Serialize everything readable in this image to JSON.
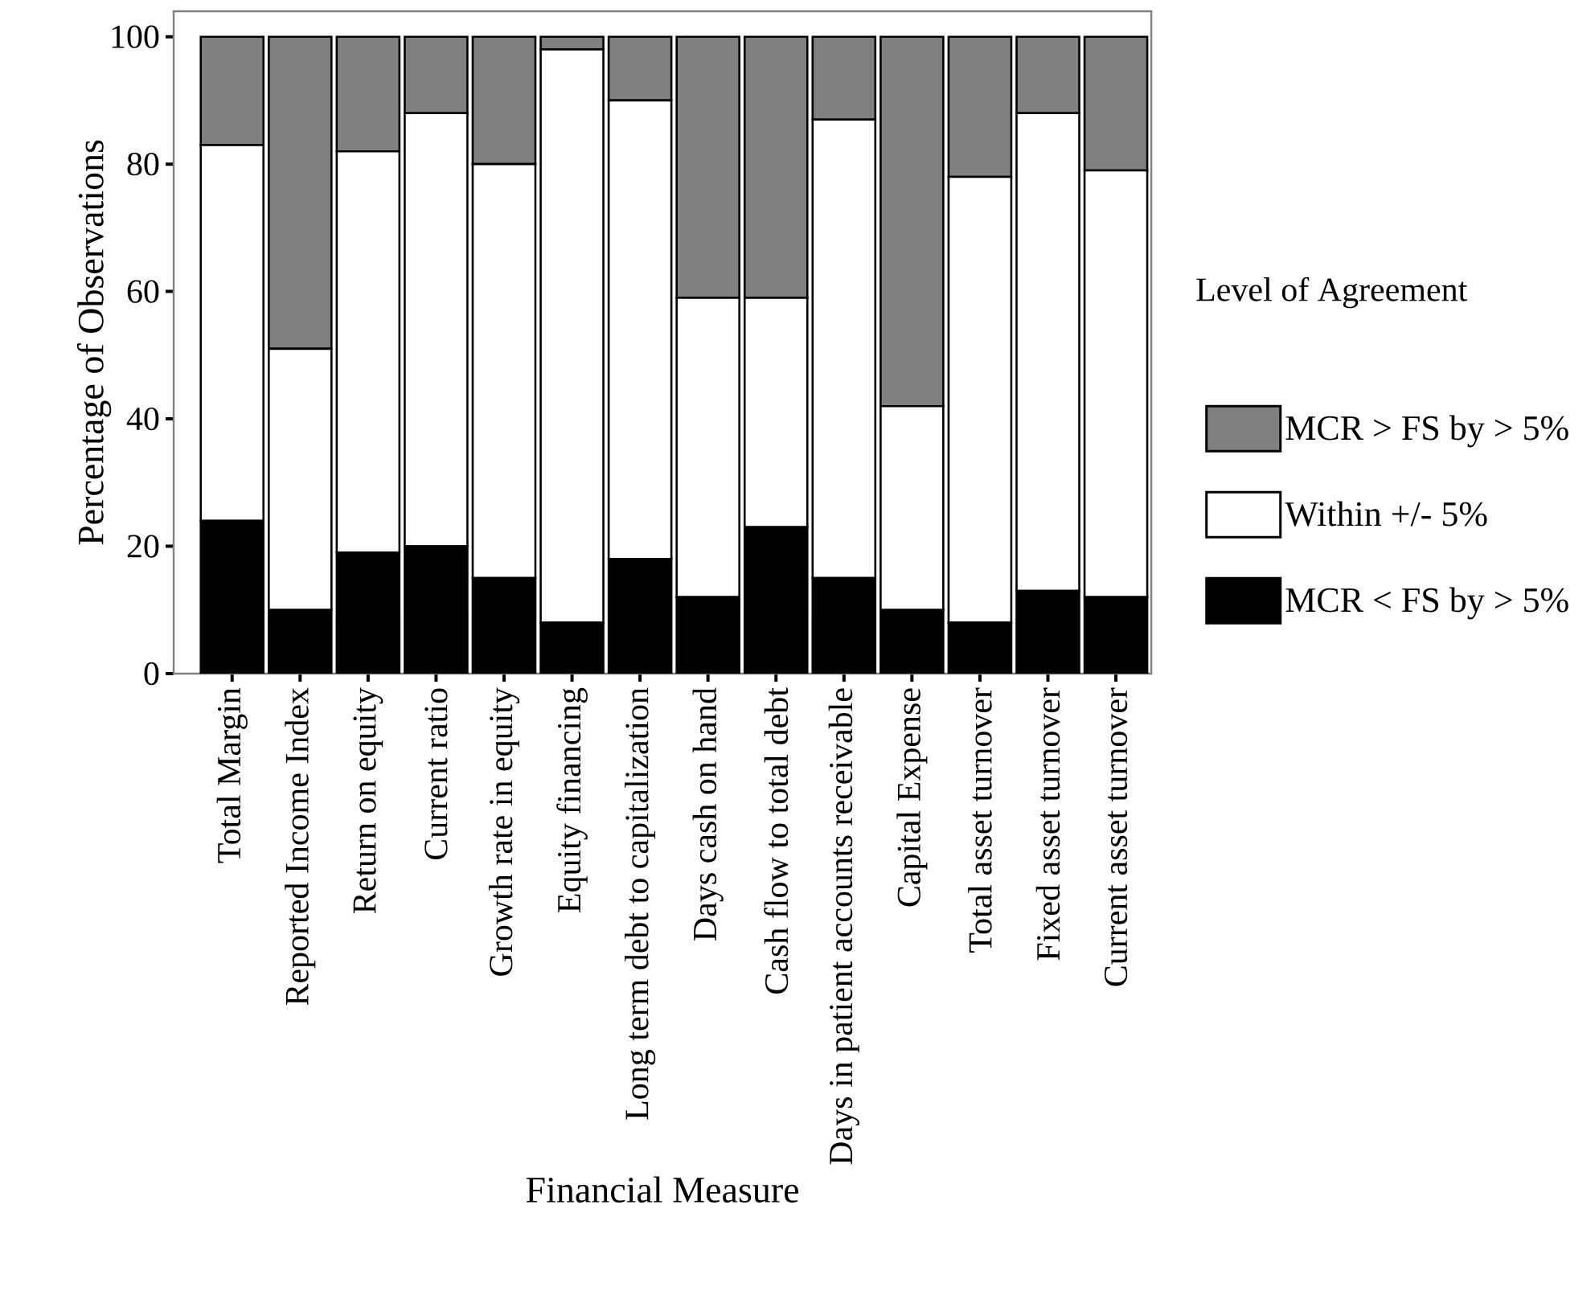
{
  "chart_data": {
    "type": "bar",
    "stacked": true,
    "xlabel": "Financial Measure",
    "ylabel": "Percentage of Observations",
    "legend_title": "Level of Agreement",
    "legend": "right",
    "categories": [
      "Total Margin",
      "Reported Income Index",
      "Return on equity",
      "Current ratio",
      "Growth rate in equity",
      "Equity financing",
      "Long term debt to capitalization",
      "Days cash on hand",
      "Cash flow to total debt",
      "Days in patient accounts receivable",
      "Capital Expense",
      "Total asset turnover",
      "Fixed asset turnover",
      "Current asset turnover"
    ],
    "series": [
      {
        "name": "MCR < FS by > 5%",
        "color": "#000000",
        "values": [
          24,
          10,
          19,
          20,
          15,
          8,
          18,
          12,
          23,
          15,
          10,
          8,
          13,
          12
        ]
      },
      {
        "name": "Within +/- 5%",
        "color": "#ffffff",
        "values": [
          59,
          41,
          63,
          68,
          65,
          90,
          72,
          47,
          36,
          72,
          32,
          70,
          75,
          67
        ]
      },
      {
        "name": "MCR > FS by > 5%",
        "color": "#808080",
        "values": [
          17,
          49,
          18,
          12,
          20,
          2,
          10,
          41,
          41,
          13,
          58,
          22,
          12,
          21
        ]
      }
    ],
    "ylim": [
      0,
      104
    ],
    "yticks": [
      0,
      20,
      40,
      60,
      80,
      100
    ],
    "grid": false
  }
}
